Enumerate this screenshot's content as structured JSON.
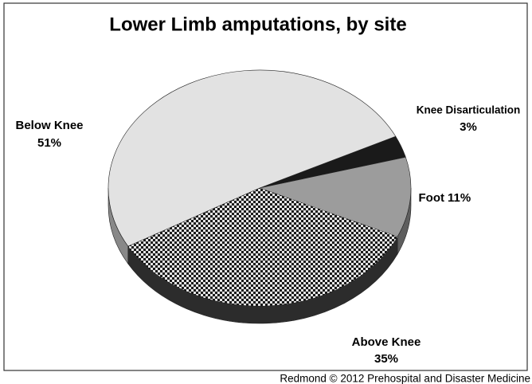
{
  "chart_data": {
    "type": "pie",
    "title": "Lower Limb amputations, by site",
    "categories": [
      "Knee Disarticulation",
      "Foot",
      "Above Knee",
      "Below Knee"
    ],
    "values": [
      3,
      11,
      35,
      51
    ],
    "value_labels": [
      "3%",
      "11%",
      "35%",
      "51%"
    ],
    "colors": [
      "#1a1a1a",
      "#9c9c9c",
      "#4a4a4a",
      "#e2e2e2"
    ],
    "source": "Redmond © 2012 Prehospital and Disaster Medicine"
  }
}
